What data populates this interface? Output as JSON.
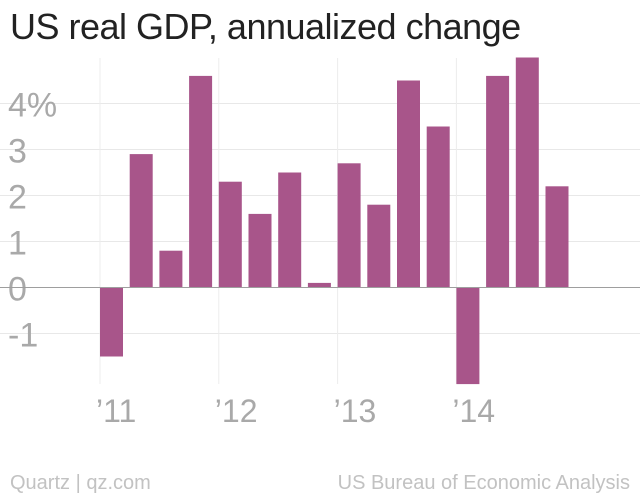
{
  "chart_data": {
    "type": "bar",
    "title": "US real GDP, annualized change",
    "xlabel": "",
    "ylabel": "",
    "categories": [
      "2011 Q1",
      "2011 Q2",
      "2011 Q3",
      "2011 Q4",
      "2012 Q1",
      "2012 Q2",
      "2012 Q3",
      "2012 Q4",
      "2013 Q1",
      "2013 Q2",
      "2013 Q3",
      "2013 Q4",
      "2014 Q1",
      "2014 Q2",
      "2014 Q3",
      "2014 Q4"
    ],
    "values": [
      -1.5,
      2.9,
      0.8,
      4.6,
      2.3,
      1.6,
      2.5,
      0.1,
      2.7,
      1.8,
      4.5,
      3.5,
      -2.1,
      4.6,
      5.0,
      2.2
    ],
    "ylim": [
      -2.1,
      5.0
    ],
    "y_ticks": [
      {
        "value": 4,
        "label": "4%"
      },
      {
        "value": 3,
        "label": "3"
      },
      {
        "value": 2,
        "label": "2"
      },
      {
        "value": 1,
        "label": "1"
      },
      {
        "value": 0,
        "label": "0"
      },
      {
        "value": -1,
        "label": "-1"
      }
    ],
    "x_ticks": [
      {
        "index": 0,
        "label": "’11"
      },
      {
        "index": 4,
        "label": "’12"
      },
      {
        "index": 8,
        "label": "’13"
      },
      {
        "index": 12,
        "label": "’14"
      }
    ],
    "bar_color": "#a8558a",
    "grid": true
  },
  "footer": {
    "source_left": "Quartz | qz.com",
    "source_right": "US Bureau of Economic Analysis"
  }
}
